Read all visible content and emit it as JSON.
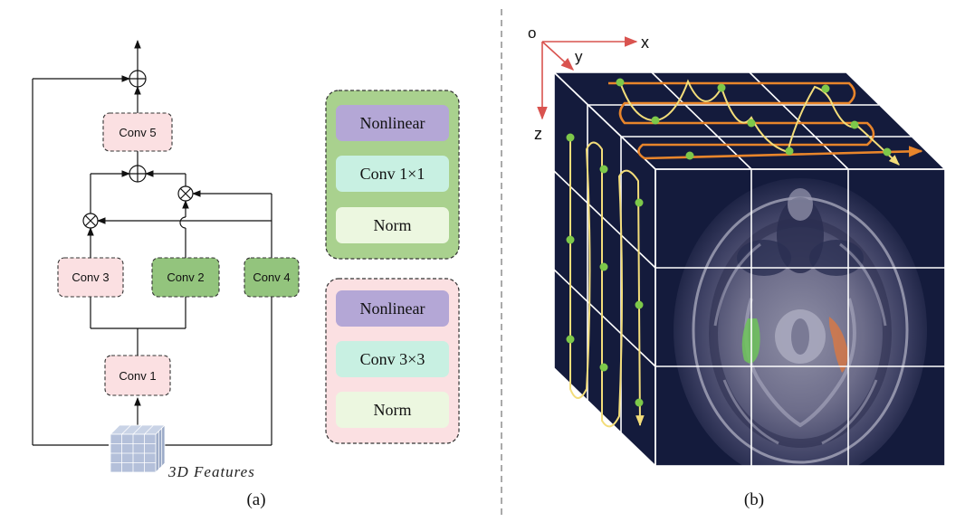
{
  "panel_a": {
    "caption": "(a)",
    "input_label": "3D Features",
    "blocks": {
      "conv1": "Conv 1",
      "conv2": "Conv 2",
      "conv3": "Conv 3",
      "conv4": "Conv 4",
      "conv5": "Conv 5"
    },
    "legend_green": {
      "nonlinear": "Nonlinear",
      "conv": "Conv 1×1",
      "norm": "Norm"
    },
    "legend_pink": {
      "nonlinear": "Nonlinear",
      "conv": "Conv 3×3",
      "norm": "Norm"
    },
    "colors": {
      "pink_fill": "#fbe0e2",
      "green_fill": "#93c47d",
      "green_box_fill": "#a9d18e",
      "nonlinear_fill": "#b4a7d6",
      "conv_fill": "#c8f0e2",
      "norm_fill": "#ecf7e0"
    }
  },
  "panel_b": {
    "caption": "(b)",
    "axes": {
      "origin": "o",
      "x": "x",
      "y": "y",
      "z": "z"
    },
    "colors": {
      "axis": "#d9534f",
      "cube_face": "#141b3c",
      "scan_orange": "#e8852b",
      "scan_yellow": "#f3dd7a",
      "point_green": "#7dc84a"
    }
  }
}
